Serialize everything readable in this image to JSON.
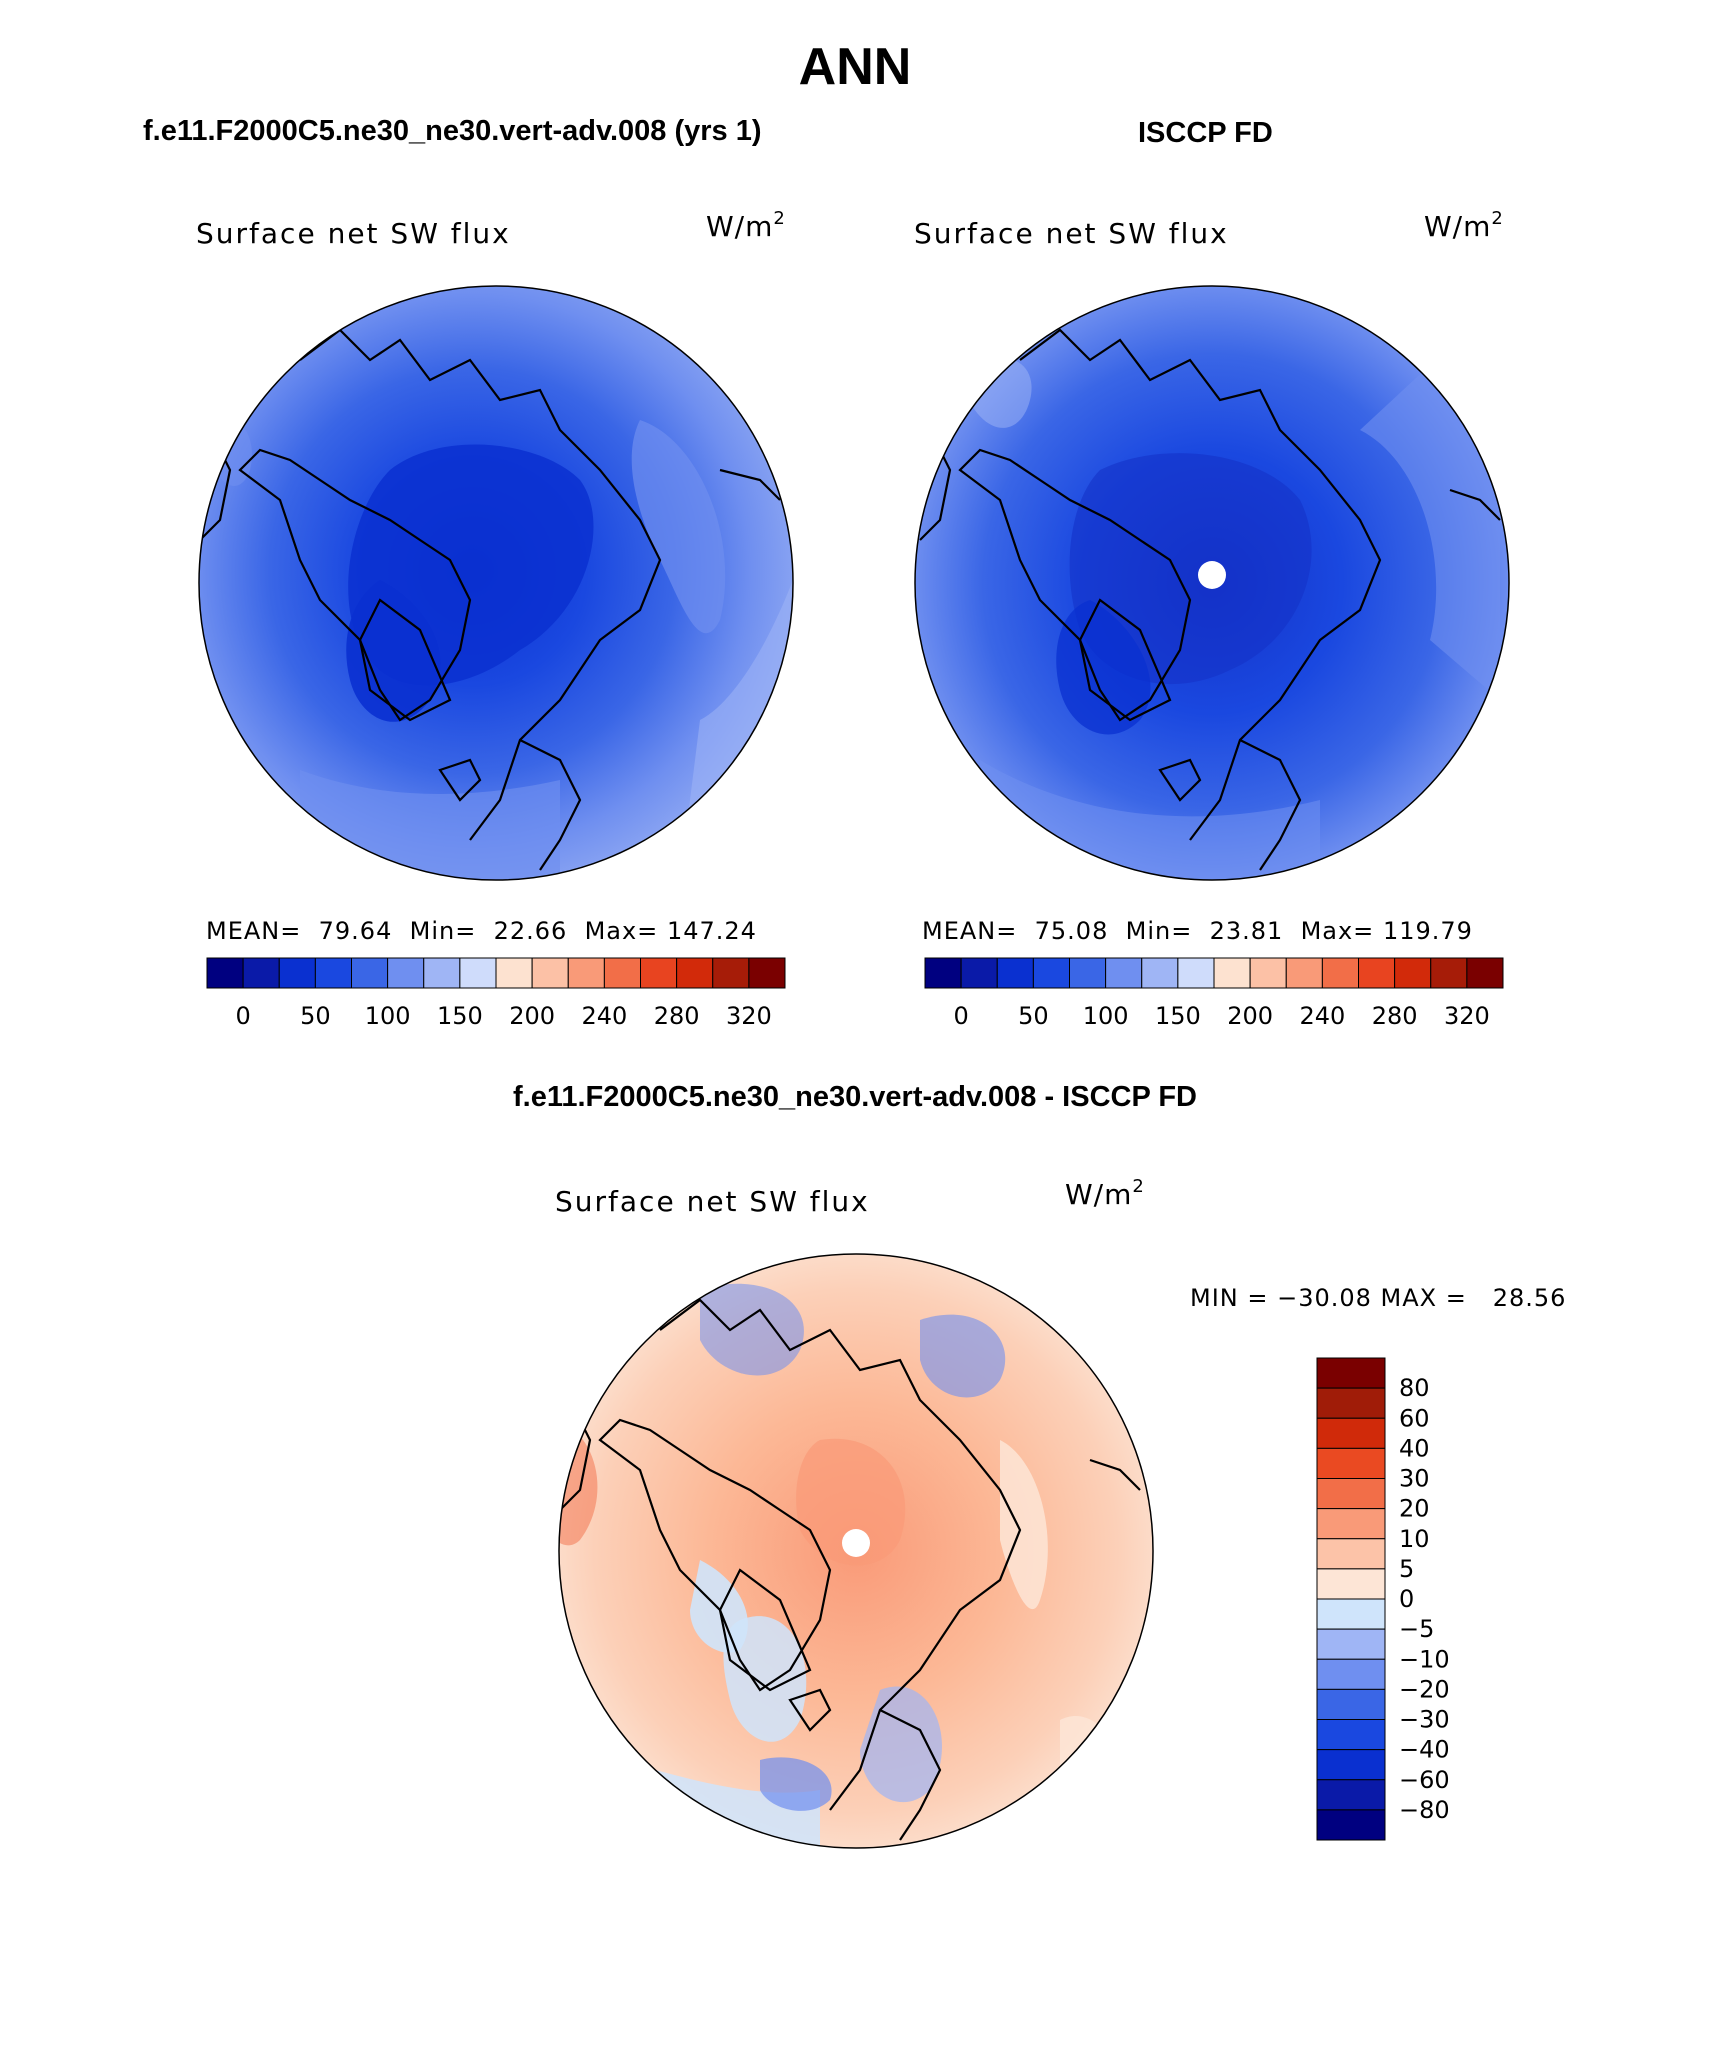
{
  "page_title": "ANN",
  "colors": {
    "abs_scale": [
      "#000080",
      "#0a1aa8",
      "#0a30d0",
      "#1a48e0",
      "#3a66e6",
      "#6f8ff0",
      "#9fb5f5",
      "#cfdcfb",
      "#fde2d0",
      "#fcc1a6",
      "#f99a78",
      "#f26e48",
      "#e84420",
      "#d22a0a",
      "#a61c08",
      "#7a0000"
    ],
    "diff_scale": [
      "#000080",
      "#0a1aa8",
      "#0a30d0",
      "#1a48e0",
      "#3a66e6",
      "#6f8ff0",
      "#9fb5f5",
      "#cfe4fb",
      "#fde5d6",
      "#fcc3a8",
      "#f99a78",
      "#f26e48",
      "#ea4a22",
      "#d02a0a",
      "#a01c08",
      "#7a0000"
    ]
  },
  "chart_data": [
    {
      "type": "polar_contour_map",
      "title": "f.e11.F2000C5.ne30_ne30.vert-adv.008 (yrs 1)",
      "subtitle": "Surface net SW flux",
      "units_base": "W/m",
      "units_exp": "2",
      "stats": {
        "mean_label": "MEAN=",
        "mean": "79.64",
        "min_label": "Min=",
        "min": "22.66",
        "max_label": "Max=",
        "max": "147.24"
      },
      "colorbar_levels": [
        "0",
        "50",
        "100",
        "150",
        "200",
        "240",
        "280",
        "320"
      ],
      "value_range": [
        22.66,
        147.24
      ]
    },
    {
      "type": "polar_contour_map",
      "title": "ISCCP FD",
      "subtitle": "Surface net SW flux",
      "units_base": "W/m",
      "units_exp": "2",
      "stats": {
        "mean_label": "MEAN=",
        "mean": "75.08",
        "min_label": "Min=",
        "min": "23.81",
        "max_label": "Max=",
        "max": "119.79"
      },
      "colorbar_levels": [
        "0",
        "50",
        "100",
        "150",
        "200",
        "240",
        "280",
        "320"
      ],
      "value_range": [
        23.81,
        119.79
      ]
    },
    {
      "type": "polar_contour_map",
      "title": "f.e11.F2000C5.ne30_ne30.vert-adv.008 - ISCCP FD",
      "subtitle": "Surface net SW flux",
      "units_base": "W/m",
      "units_exp": "2",
      "minmax_text": "MIN = −30.08 MAX =   28.56",
      "colorbar_levels": [
        "80",
        "60",
        "40",
        "30",
        "20",
        "10",
        "5",
        "0",
        "−5",
        "−10",
        "−20",
        "−30",
        "−40",
        "−60",
        "−80"
      ],
      "value_range": [
        -30.08,
        28.56
      ]
    }
  ]
}
